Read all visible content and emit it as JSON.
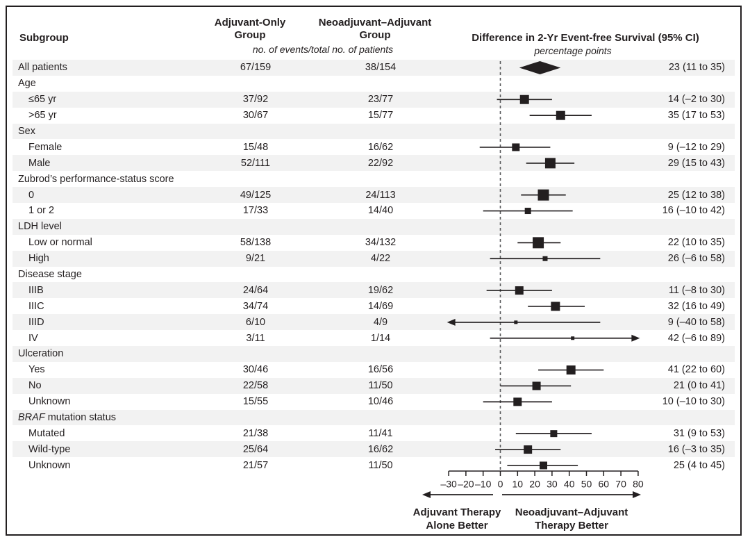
{
  "chart_data": {
    "type": "forest",
    "title": "Difference in 2-Yr Event-free Survival (95% CI)",
    "unit_label": "percentage points",
    "events_note": "no. of events/total no. of patients",
    "col_headers": {
      "subgroup": "Subgroup",
      "adjuvant_line1": "Adjuvant-Only",
      "adjuvant_line2": "Group",
      "neoadjuvant_line1": "Neoadjuvant–Adjuvant",
      "neoadjuvant_line2": "Group"
    },
    "axis": {
      "ticks": [
        -30,
        -20,
        -10,
        0,
        10,
        20,
        30,
        40,
        50,
        60,
        70,
        80
      ],
      "min": -30,
      "max": 80,
      "zero_reference": 0,
      "clip_lo": -31,
      "clip_hi": 81,
      "grid": false
    },
    "direction_labels": {
      "left_line1": "Adjuvant Therapy",
      "left_line2": "Alone Better",
      "right_line1": "Neoadjuvant–Adjuvant",
      "right_line2": "Therapy Better"
    },
    "rows": [
      {
        "label": "All patients",
        "adj": "67/159",
        "neo": "38/154",
        "est": 23,
        "lo": 11,
        "hi": 35,
        "ci": "23 (11 to 35)",
        "marker": "diamond"
      },
      {
        "label": "Age",
        "group": true
      },
      {
        "label": "≤65 yr",
        "indent": 1,
        "adj": "37/92",
        "neo": "23/77",
        "est": 14,
        "lo": -2,
        "hi": 30,
        "ci": "14 (–2 to 30)",
        "size": 13
      },
      {
        "label": ">65 yr",
        "indent": 1,
        "adj": "30/67",
        "neo": "15/77",
        "est": 35,
        "lo": 17,
        "hi": 53,
        "ci": "35 (17 to 53)",
        "size": 13
      },
      {
        "label": "Sex",
        "group": true
      },
      {
        "label": "Female",
        "indent": 1,
        "adj": "15/48",
        "neo": "16/62",
        "est": 9,
        "lo": -12,
        "hi": 29,
        "ci": "9 (–12 to 29)",
        "size": 11
      },
      {
        "label": "Male",
        "indent": 1,
        "adj": "52/111",
        "neo": "22/92",
        "est": 29,
        "lo": 15,
        "hi": 43,
        "ci": "29 (15 to 43)",
        "size": 15
      },
      {
        "label": "Zubrod’s performance-status score",
        "group": true
      },
      {
        "label": "0",
        "indent": 1,
        "adj": "49/125",
        "neo": "24/113",
        "est": 25,
        "lo": 12,
        "hi": 38,
        "ci": "25 (12 to 38)",
        "size": 16
      },
      {
        "label": "1 or 2",
        "indent": 1,
        "adj": "17/33",
        "neo": "14/40",
        "est": 16,
        "lo": -10,
        "hi": 42,
        "ci": "16 (–10 to 42)",
        "size": 9
      },
      {
        "label": "LDH level",
        "group": true
      },
      {
        "label": "Low or normal",
        "indent": 1,
        "adj": "58/138",
        "neo": "34/132",
        "est": 22,
        "lo": 10,
        "hi": 35,
        "ci": "22 (10 to 35)",
        "size": 16
      },
      {
        "label": "High",
        "indent": 1,
        "adj": "9/21",
        "neo": "4/22",
        "est": 26,
        "lo": -6,
        "hi": 58,
        "ci": "26 (–6 to 58)",
        "size": 7
      },
      {
        "label": "Disease stage",
        "group": true
      },
      {
        "label": "IIIB",
        "indent": 1,
        "adj": "24/64",
        "neo": "19/62",
        "est": 11,
        "lo": -8,
        "hi": 30,
        "ci": "11 (–8 to 30)",
        "size": 12
      },
      {
        "label": "IIIC",
        "indent": 1,
        "adj": "34/74",
        "neo": "14/69",
        "est": 32,
        "lo": 16,
        "hi": 49,
        "ci": "32 (16 to 49)",
        "size": 13
      },
      {
        "label": "IIID",
        "indent": 1,
        "adj": "6/10",
        "neo": "4/9",
        "est": 9,
        "lo": -40,
        "hi": 58,
        "ci": "9 (–40 to 58)",
        "size": 5
      },
      {
        "label": "IV",
        "indent": 1,
        "adj": "3/11",
        "neo": "1/14",
        "est": 42,
        "lo": -6,
        "hi": 89,
        "ci": "42 (–6 to 89)",
        "size": 5
      },
      {
        "label": "Ulceration",
        "group": true
      },
      {
        "label": "Yes",
        "indent": 1,
        "adj": "30/46",
        "neo": "16/56",
        "est": 41,
        "lo": 22,
        "hi": 60,
        "ci": "41 (22 to 60)",
        "size": 13
      },
      {
        "label": "No",
        "indent": 1,
        "adj": "22/58",
        "neo": "11/50",
        "est": 21,
        "lo": 0,
        "hi": 41,
        "ci": "21 (0 to 41)",
        "size": 12
      },
      {
        "label": "Unknown",
        "indent": 1,
        "adj": "15/55",
        "neo": "10/46",
        "est": 10,
        "lo": -10,
        "hi": 30,
        "ci": "10 (–10 to 30)",
        "size": 12
      },
      {
        "label": "BRAF mutation status",
        "group": true,
        "italic_prefix": "BRAF"
      },
      {
        "label": "Mutated",
        "indent": 1,
        "adj": "21/38",
        "neo": "11/41",
        "est": 31,
        "lo": 9,
        "hi": 53,
        "ci": "31 (9 to 53)",
        "size": 10
      },
      {
        "label": "Wild-type",
        "indent": 1,
        "adj": "25/64",
        "neo": "16/62",
        "est": 16,
        "lo": -3,
        "hi": 35,
        "ci": "16 (–3 to 35)",
        "size": 12
      },
      {
        "label": "Unknown",
        "indent": 1,
        "adj": "21/57",
        "neo": "11/50",
        "est": 25,
        "lo": 4,
        "hi": 45,
        "ci": "25 (4 to 45)",
        "size": 11
      }
    ],
    "colors": {
      "text": "#231f20",
      "marker": "#231f20",
      "stripe": "#f2f2f2",
      "zero_line": "#58595b",
      "frame_border": "#231f20"
    },
    "legend_position": "none"
  }
}
